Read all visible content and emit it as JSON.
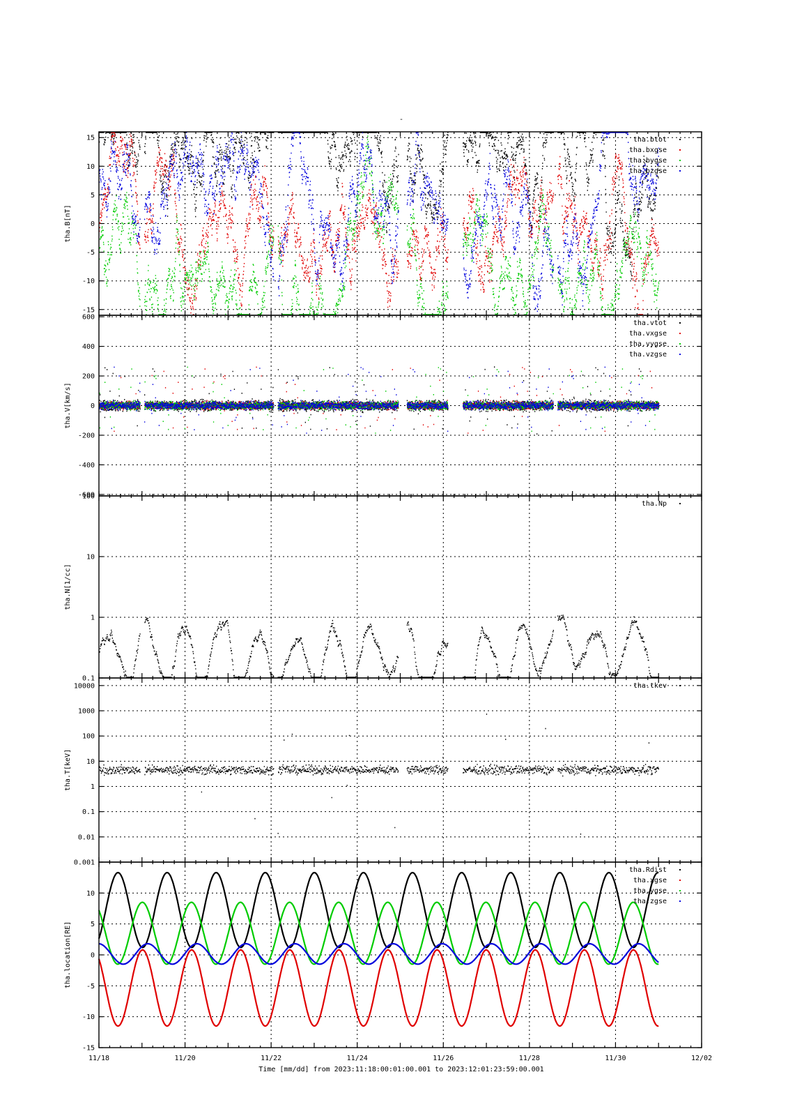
{
  "figure": {
    "title": "-",
    "x_axis": {
      "tick_labels": [
        "11/18",
        "11/20",
        "11/22",
        "11/24",
        "11/26",
        "11/28",
        "11/30",
        "12/02"
      ],
      "tick_days": [
        0,
        2,
        4,
        6,
        8,
        10,
        12,
        14
      ],
      "range_days": [
        0,
        14
      ],
      "data_end_day": 13,
      "caption": "Time [mm/dd]  from 2023:11:18:00:01:00.001  to  2023:12:01:23:59:00.001",
      "grid": true
    },
    "colors": {
      "black": "#000000",
      "red": "#e00000",
      "green": "#00cc00",
      "blue": "#0000dd"
    }
  },
  "chart_data": [
    {
      "type": "scatter",
      "ylabel": "tha.B[nT]",
      "ylim": [
        -16,
        16
      ],
      "yscale": "linear",
      "yticks": [
        15,
        10,
        5,
        0,
        -5,
        -10,
        -15
      ],
      "grid": true,
      "legend_placement": "top-right",
      "series": [
        {
          "name": "tha.btot",
          "color": "#000000"
        },
        {
          "name": "tha.bxgse",
          "color": "#e00000"
        },
        {
          "name": "tha.bygse",
          "color": "#00cc00"
        },
        {
          "name": "tha.bzgse",
          "color": "#0000dd"
        }
      ]
    },
    {
      "type": "scatter",
      "ylabel": "tha.V[km/s]",
      "ylim": [
        -610,
        610
      ],
      "yscale": "linear",
      "yticks": [
        600,
        400,
        200,
        0,
        -200,
        -400,
        -600
      ],
      "grid": true,
      "legend_placement": "top-right",
      "series": [
        {
          "name": "tha.vtot",
          "color": "#000000"
        },
        {
          "name": "tha.vxgse",
          "color": "#e00000"
        },
        {
          "name": "tha.vygse",
          "color": "#00cc00"
        },
        {
          "name": "tha.vzgse",
          "color": "#0000dd"
        }
      ]
    },
    {
      "type": "scatter",
      "ylabel": "tha.N[1/cc]",
      "ylim": [
        0.1,
        100
      ],
      "yscale": "log",
      "yticks": [
        100,
        10,
        1,
        0.1
      ],
      "grid": true,
      "legend_placement": "top-right",
      "series": [
        {
          "name": "tha.Np",
          "color": "#000000"
        }
      ]
    },
    {
      "type": "scatter",
      "ylabel": "tha.T[keV]",
      "ylim": [
        0.001,
        20000
      ],
      "yscale": "log",
      "yticks": [
        10000,
        1000,
        100,
        10,
        1,
        0.1,
        0.01,
        0.001
      ],
      "ytick_labels": [
        "10000",
        "1000",
        "100",
        "10",
        "1",
        "0.1",
        "0.01",
        "0.001"
      ],
      "grid": true,
      "legend_placement": "top-right",
      "series": [
        {
          "name": "tha.tkev",
          "color": "#000000"
        }
      ]
    },
    {
      "type": "line",
      "ylabel": "tha.location[RE]",
      "ylim": [
        -15,
        15
      ],
      "yscale": "linear",
      "yticks": [
        10,
        5,
        0,
        -5,
        -10,
        -15
      ],
      "grid": true,
      "legend_placement": "top-right",
      "series": [
        {
          "name": "tha.Rdist",
          "color": "#000000",
          "min": 1.2,
          "max": 13.3,
          "orbits": 11.4
        },
        {
          "name": "tha.xgse",
          "color": "#e00000",
          "min": -11.5,
          "max": 0.8,
          "orbits": 11.4
        },
        {
          "name": "tha.ygse",
          "color": "#00cc00",
          "min": -1.5,
          "max": 8.5,
          "orbits": 11.4
        },
        {
          "name": "tha.zgse",
          "color": "#0000dd",
          "min": -1.5,
          "max": 1.8,
          "orbits": 11.4
        }
      ]
    }
  ]
}
